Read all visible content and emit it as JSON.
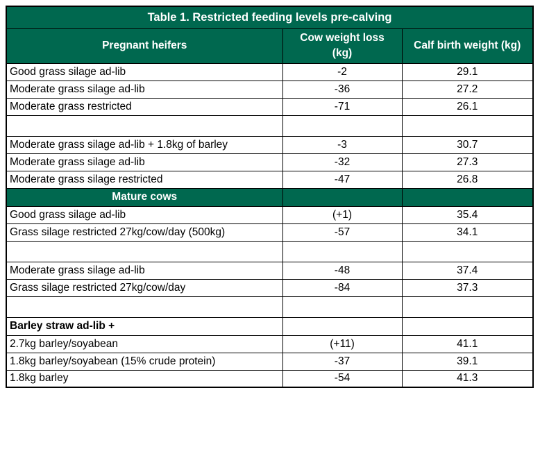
{
  "colors": {
    "header_green": "#00684F",
    "border": "#000000",
    "text": "#000000",
    "header_text": "#ffffff"
  },
  "table": {
    "title": "Table 1. Restricted feeding levels pre-calving",
    "columns": [
      "Pregnant heifers",
      "Cow weight loss\n(kg)",
      "Calf birth weight (kg)"
    ],
    "rows": [
      {
        "type": "data",
        "label": "Good grass silage ad-lib",
        "loss": "-2",
        "weight": "29.1"
      },
      {
        "type": "data",
        "label": "Moderate grass silage ad-lib",
        "loss": "-36",
        "weight": "27.2"
      },
      {
        "type": "data",
        "label": "Moderate grass restricted",
        "loss": "-71",
        "weight": "26.1"
      },
      {
        "type": "empty",
        "label": "",
        "loss": "",
        "weight": ""
      },
      {
        "type": "data",
        "label": "Moderate grass silage ad-lib + 1.8kg of barley",
        "loss": "-3",
        "weight": "30.7"
      },
      {
        "type": "data",
        "label": "Moderate grass silage ad-lib",
        "loss": "-32",
        "weight": "27.3"
      },
      {
        "type": "data",
        "label": "Moderate grass silage restricted",
        "loss": "-47",
        "weight": "26.8"
      },
      {
        "type": "section",
        "label": "Mature cows",
        "loss": "",
        "weight": ""
      },
      {
        "type": "data",
        "label": "Good grass silage ad-lib",
        "loss": "(+1)",
        "weight": "35.4"
      },
      {
        "type": "data",
        "label": "Grass silage restricted 27kg/cow/day (500kg)",
        "loss": "-57",
        "weight": "34.1"
      },
      {
        "type": "empty",
        "label": "",
        "loss": "",
        "weight": ""
      },
      {
        "type": "data",
        "label": "Moderate grass silage ad-lib",
        "loss": "-48",
        "weight": "37.4"
      },
      {
        "type": "data",
        "label": "Grass silage restricted 27kg/cow/day",
        "loss": "-84",
        "weight": "37.3"
      },
      {
        "type": "empty",
        "label": "",
        "loss": "",
        "weight": ""
      },
      {
        "type": "subheading",
        "label": "Barley straw ad-lib +",
        "loss": "",
        "weight": ""
      },
      {
        "type": "data",
        "label": "2.7kg barley/soyabean",
        "loss": "(+11)",
        "weight": "41.1"
      },
      {
        "type": "data",
        "label": "1.8kg barley/soyabean (15% crude protein)",
        "loss": "-37",
        "weight": "39.1"
      },
      {
        "type": "data",
        "label": "1.8kg barley",
        "loss": "-54",
        "weight": "41.3"
      }
    ]
  }
}
